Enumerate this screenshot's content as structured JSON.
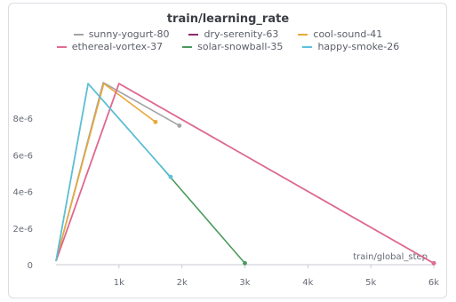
{
  "chart_data": {
    "type": "line",
    "title": "train/learning_rate",
    "xlabel": "train/global_step",
    "ylabel": "",
    "xlim": [
      0,
      6000
    ],
    "ylim": [
      0,
      1e-05
    ],
    "xticks": [
      {
        "v": 1000,
        "label": "1k"
      },
      {
        "v": 2000,
        "label": "2k"
      },
      {
        "v": 3000,
        "label": "3k"
      },
      {
        "v": 4000,
        "label": "4k"
      },
      {
        "v": 5000,
        "label": "5k"
      },
      {
        "v": 6000,
        "label": "6k"
      }
    ],
    "yticks": [
      {
        "v": 0,
        "label": "0"
      },
      {
        "v": 2e-06,
        "label": "2e-6"
      },
      {
        "v": 4e-06,
        "label": "4e-6"
      },
      {
        "v": 6e-06,
        "label": "6e-6"
      },
      {
        "v": 8e-06,
        "label": "8e-6"
      }
    ],
    "grid": false,
    "legend_position": "top",
    "series": [
      {
        "name": "sunny-yogurt-80",
        "color": "#a3a3a3",
        "x": [
          0,
          750,
          1960
        ],
        "y": [
          2e-07,
          9.95e-06,
          7.6e-06
        ]
      },
      {
        "name": "dry-serenity-63",
        "color": "#8c2a66",
        "x": [
          0,
          1000,
          6000
        ],
        "y": [
          2e-07,
          9.9e-06,
          8e-08
        ]
      },
      {
        "name": "cool-sound-41",
        "color": "#e8a93a",
        "x": [
          0,
          760,
          1580
        ],
        "y": [
          2e-07,
          9.9e-06,
          7.8e-06
        ]
      },
      {
        "name": "ethereal-vortex-37",
        "color": "#e46b8f",
        "x": [
          0,
          1000,
          6000
        ],
        "y": [
          2e-07,
          9.9e-06,
          8e-08
        ]
      },
      {
        "name": "solar-snowball-35",
        "color": "#4a9a5c",
        "x": [
          0,
          510,
          1560,
          3000
        ],
        "y": [
          2e-07,
          9.9e-06,
          5.8e-06,
          8e-08
        ]
      },
      {
        "name": "happy-smoke-26",
        "color": "#5bc0de",
        "x": [
          0,
          510,
          1560,
          1820
        ],
        "y": [
          2e-07,
          9.9e-06,
          5.8e-06,
          4.8e-06
        ]
      }
    ]
  }
}
